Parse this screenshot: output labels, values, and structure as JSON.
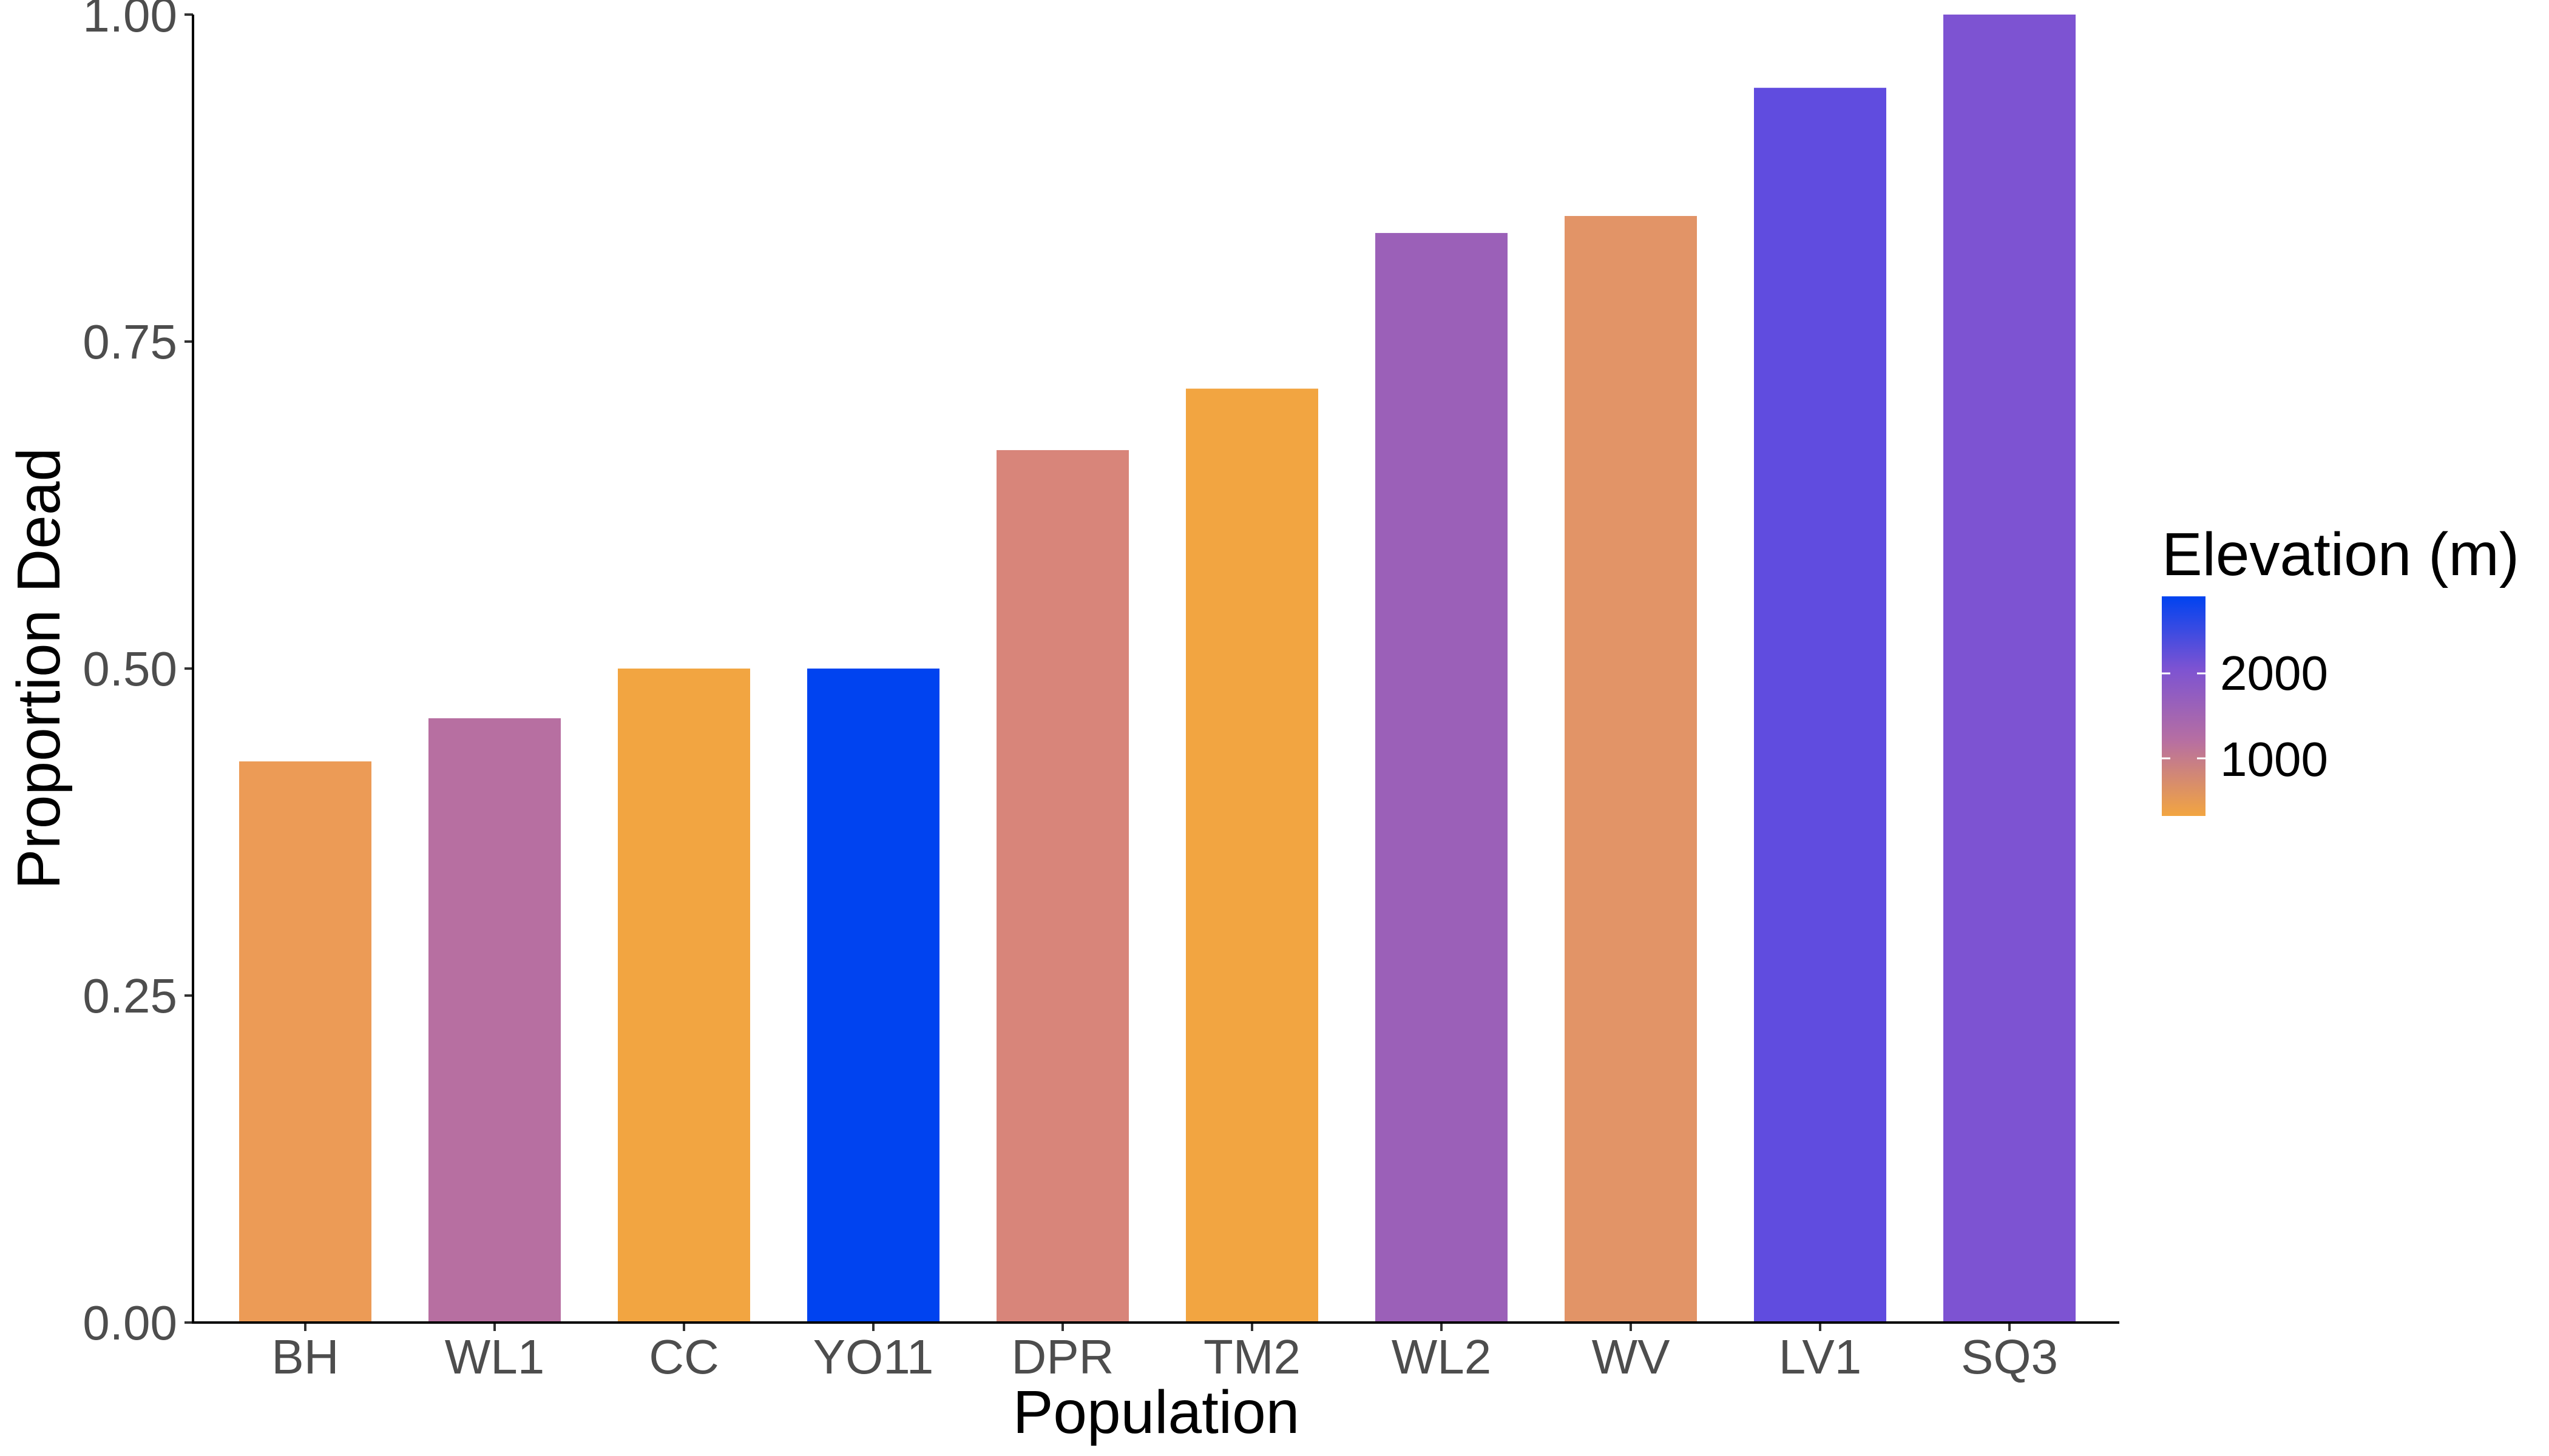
{
  "chart_data": {
    "type": "bar",
    "title": "",
    "xlabel": "Population",
    "ylabel": "Proportion Dead",
    "ylim": [
      0,
      1
    ],
    "yticks": [
      "0.00",
      "0.25",
      "0.50",
      "0.75",
      "1.00"
    ],
    "grid": false,
    "categories": [
      "BH",
      "WL1",
      "CC",
      "YO11",
      "DPR",
      "TM2",
      "WL2",
      "WV",
      "LV1",
      "SQ3"
    ],
    "values": [
      0.429,
      0.462,
      0.5,
      0.5,
      0.667,
      0.714,
      0.833,
      0.846,
      0.944,
      1.0
    ],
    "elevation_m": [
      511,
      1614,
      313,
      2872,
      1019,
      379,
      2020,
      748,
      2593,
      2373
    ],
    "bar_colors": [
      "#EC9B56",
      "#B76FA1",
      "#F2A541",
      "#0043F0",
      "#D8857A",
      "#F2A541",
      "#9B60B8",
      "#E29467",
      "#604CDF",
      "#7D53D2"
    ],
    "legend": {
      "title": "Elevation (m)",
      "position": "right",
      "labels": [
        "2000",
        "1000"
      ],
      "gradient_colors": [
        "#0043F0",
        "#7D53D2",
        "#B76FA1",
        "#F2A541"
      ]
    }
  }
}
